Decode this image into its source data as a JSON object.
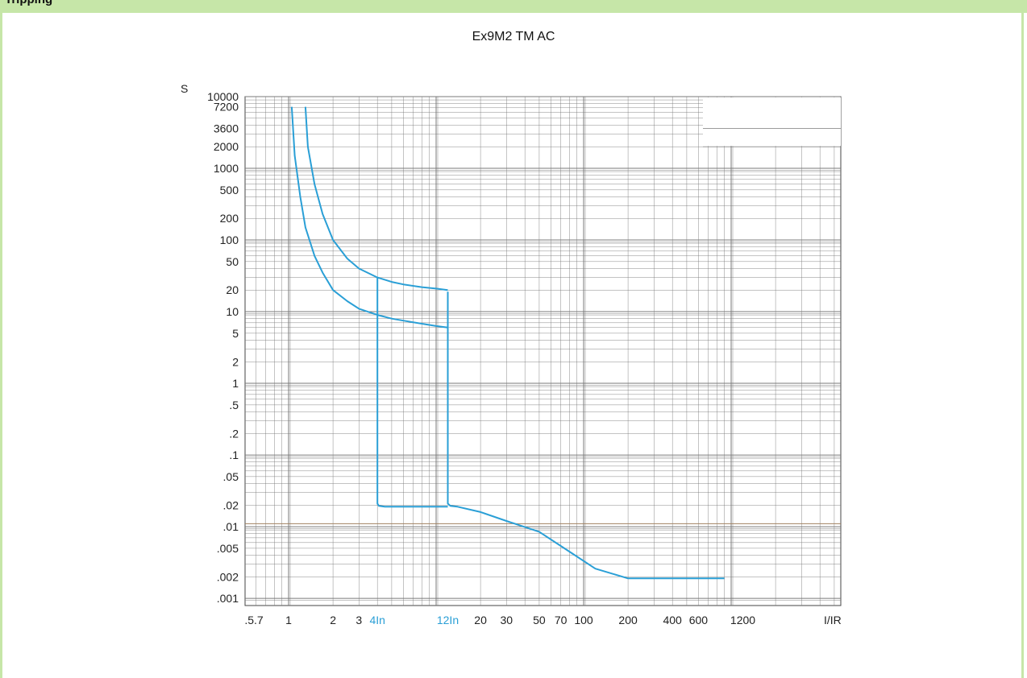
{
  "header": {
    "label": "Tripping"
  },
  "chart_data": {
    "type": "line",
    "title": "Ex9M2 TM AC",
    "ylabel": "S",
    "xlabel": "I/IR",
    "x_scale": "log",
    "y_scale": "log",
    "xlim": [
      0.4,
      5000
    ],
    "ylim": [
      0.0008,
      10000
    ],
    "grid": true,
    "colors": {
      "curve": "#2a9fd6",
      "grid": "#7a7a7a",
      "frame_accent": "#c6e6a8",
      "reference_line": "#a08060"
    },
    "y_tick_labels": [
      {
        "v": 10000,
        "label": "10000"
      },
      {
        "v": 7200,
        "label": "7200"
      },
      {
        "v": 3600,
        "label": "3600"
      },
      {
        "v": 2000,
        "label": "2000"
      },
      {
        "v": 1000,
        "label": "1000"
      },
      {
        "v": 500,
        "label": "500"
      },
      {
        "v": 200,
        "label": "200"
      },
      {
        "v": 100,
        "label": "100"
      },
      {
        "v": 50,
        "label": "50"
      },
      {
        "v": 20,
        "label": "20"
      },
      {
        "v": 10,
        "label": "10"
      },
      {
        "v": 5,
        "label": "5"
      },
      {
        "v": 2,
        "label": "2"
      },
      {
        "v": 1,
        "label": "1"
      },
      {
        "v": 0.5,
        "label": ".5"
      },
      {
        "v": 0.2,
        "label": ".2"
      },
      {
        "v": 0.1,
        "label": ".1"
      },
      {
        "v": 0.05,
        "label": ".05"
      },
      {
        "v": 0.02,
        "label": ".02"
      },
      {
        "v": 0.01,
        "label": ".01"
      },
      {
        "v": 0.005,
        "label": ".005"
      },
      {
        "v": 0.002,
        "label": ".002"
      },
      {
        "v": 0.001,
        "label": ".001"
      }
    ],
    "x_tick_labels": [
      {
        "v": 0.57,
        "label": ".5.7"
      },
      {
        "v": 1,
        "label": "1"
      },
      {
        "v": 2,
        "label": "2"
      },
      {
        "v": 3,
        "label": "3"
      },
      {
        "v": 4,
        "label": "4In",
        "highlight": true
      },
      {
        "v": 12,
        "label": "12In",
        "highlight": true
      },
      {
        "v": 20,
        "label": "20"
      },
      {
        "v": 30,
        "label": "30"
      },
      {
        "v": 50,
        "label": "50"
      },
      {
        "v": 70,
        "label": "70"
      },
      {
        "v": 100,
        "label": "100"
      },
      {
        "v": 200,
        "label": "200"
      },
      {
        "v": 400,
        "label": "400"
      },
      {
        "v": 600,
        "label": "600"
      },
      {
        "v": 1200,
        "label": "1200"
      }
    ],
    "reference_line_y": 0.011,
    "series": [
      {
        "x": [
          1.05,
          1.1,
          1.2,
          1.3,
          1.5,
          1.7,
          2,
          2.5,
          3,
          4,
          5,
          6,
          8,
          10,
          12
        ],
        "y": [
          7200,
          1500,
          400,
          150,
          60,
          35,
          20,
          14,
          11,
          9,
          8,
          7.5,
          6.8,
          6.3,
          6
        ]
      },
      {
        "x": [
          1.3,
          1.35,
          1.5,
          1.7,
          2,
          2.5,
          3,
          4,
          5,
          6,
          8,
          10,
          12
        ],
        "y": [
          7200,
          2000,
          600,
          230,
          100,
          55,
          40,
          30,
          26,
          24,
          22,
          21,
          20
        ]
      },
      {
        "x": [
          4,
          4,
          4.1,
          4.5,
          6,
          8,
          10,
          12
        ],
        "y": [
          30,
          0.021,
          0.0195,
          0.019,
          0.019,
          0.019,
          0.019,
          0.019
        ]
      },
      {
        "x": [
          12,
          12,
          12.5,
          14,
          20,
          30,
          50,
          80,
          120,
          200,
          300,
          500,
          700,
          900
        ],
        "y": [
          19,
          0.021,
          0.0195,
          0.019,
          0.016,
          0.012,
          0.0085,
          0.0045,
          0.0026,
          0.0019,
          0.0019,
          0.0019,
          0.0019,
          0.0019
        ]
      }
    ]
  }
}
